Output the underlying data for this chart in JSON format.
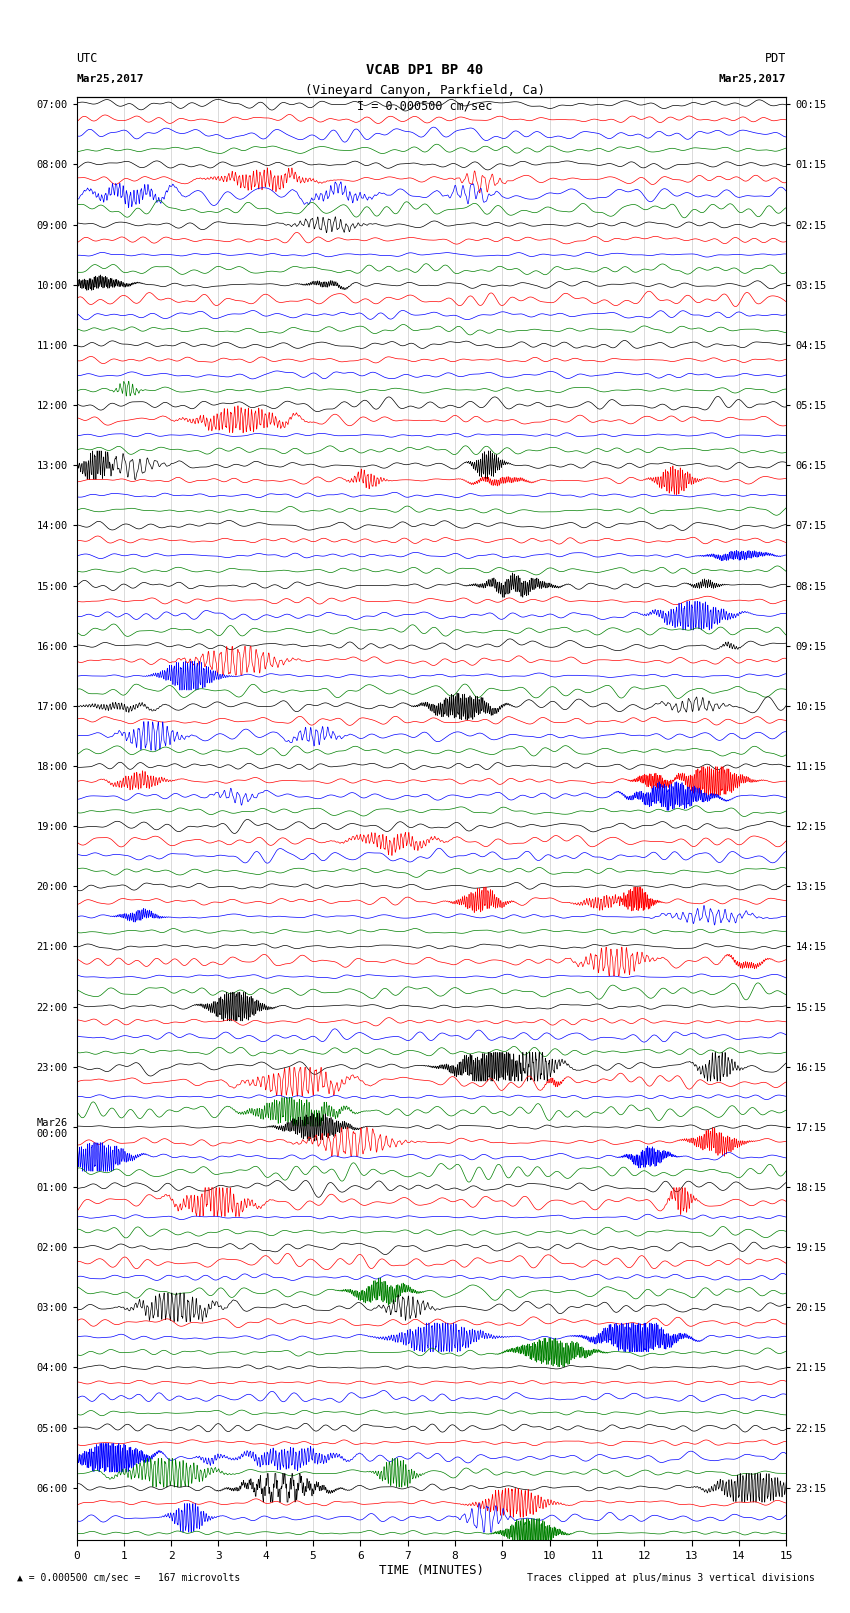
{
  "title_line1": "VCAB DP1 BP 40",
  "title_line2": "(Vineyard Canyon, Parkfield, Ca)",
  "scale_text": "I = 0.000500 cm/sec",
  "left_label": "UTC",
  "left_date": "Mar25,2017",
  "right_label": "PDT",
  "right_date": "Mar25,2017",
  "bottom_label": "TIME (MINUTES)",
  "bottom_note_left": "= 0.000500 cm/sec =   167 microvolts",
  "bottom_note_right": "Traces clipped at plus/minus 3 vertical divisions",
  "xlabel_ticks": [
    0,
    1,
    2,
    3,
    4,
    5,
    6,
    7,
    8,
    9,
    10,
    11,
    12,
    13,
    14,
    15
  ],
  "left_times": [
    "07:00",
    "08:00",
    "09:00",
    "10:00",
    "11:00",
    "12:00",
    "13:00",
    "14:00",
    "15:00",
    "16:00",
    "17:00",
    "18:00",
    "19:00",
    "20:00",
    "21:00",
    "22:00",
    "23:00",
    "Mar26\n00:00",
    "01:00",
    "02:00",
    "03:00",
    "04:00",
    "05:00",
    "06:00"
  ],
  "right_times": [
    "00:15",
    "01:15",
    "02:15",
    "03:15",
    "04:15",
    "05:15",
    "06:15",
    "07:15",
    "08:15",
    "09:15",
    "10:15",
    "11:15",
    "12:15",
    "13:15",
    "14:15",
    "15:15",
    "16:15",
    "17:15",
    "18:15",
    "19:15",
    "20:15",
    "21:15",
    "22:15",
    "23:15"
  ],
  "colors": [
    "black",
    "red",
    "blue",
    "green"
  ],
  "n_groups": 24,
  "minutes": 15,
  "bg_color": "white",
  "fig_width": 8.5,
  "fig_height": 16.13,
  "dpi": 100
}
